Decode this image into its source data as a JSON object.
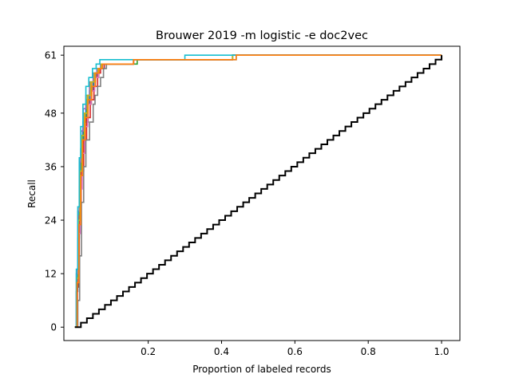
{
  "chart_data": {
    "type": "line",
    "title": "Brouwer 2019 -m logistic -e doc2vec",
    "xlabel": "Proportion of labeled records",
    "ylabel": "Recall",
    "xlim": [
      -0.03,
      1.05
    ],
    "ylim": [
      -3,
      63
    ],
    "xticks": [
      {
        "value": 0.2,
        "label": "0.2"
      },
      {
        "value": 0.4,
        "label": "0.4"
      },
      {
        "value": 0.6,
        "label": "0.6"
      },
      {
        "value": 0.8,
        "label": "0.8"
      },
      {
        "value": 1.0,
        "label": "1.0"
      }
    ],
    "yticks": [
      {
        "value": 0,
        "label": "0"
      },
      {
        "value": 12,
        "label": "12"
      },
      {
        "value": 24,
        "label": "24"
      },
      {
        "value": 36,
        "label": "36"
      },
      {
        "value": 48,
        "label": "48"
      },
      {
        "value": 61,
        "label": "61"
      }
    ],
    "grid": false,
    "legend": "none",
    "series": [
      {
        "color": "#1f77b4",
        "points": [
          [
            0,
            0
          ],
          [
            0.004,
            8
          ],
          [
            0.008,
            20
          ],
          [
            0.012,
            32
          ],
          [
            0.016,
            40
          ],
          [
            0.022,
            46
          ],
          [
            0.03,
            50
          ],
          [
            0.04,
            53
          ],
          [
            0.05,
            56
          ],
          [
            0.06,
            58
          ],
          [
            0.08,
            59
          ],
          [
            0.15,
            59
          ],
          [
            0.16,
            60
          ],
          [
            0.43,
            60
          ],
          [
            0.44,
            61
          ],
          [
            1.0,
            61
          ]
        ]
      },
      {
        "color": "#ff7f0e",
        "points": [
          [
            0,
            0
          ],
          [
            0.006,
            10
          ],
          [
            0.01,
            24
          ],
          [
            0.015,
            34
          ],
          [
            0.02,
            42
          ],
          [
            0.028,
            48
          ],
          [
            0.036,
            52
          ],
          [
            0.046,
            55
          ],
          [
            0.056,
            57
          ],
          [
            0.066,
            58
          ],
          [
            0.075,
            59
          ],
          [
            0.15,
            59
          ],
          [
            0.16,
            60
          ],
          [
            0.42,
            60
          ],
          [
            0.43,
            61
          ],
          [
            1.0,
            61
          ]
        ]
      },
      {
        "color": "#2ca02c",
        "points": [
          [
            0,
            0
          ],
          [
            0.005,
            9
          ],
          [
            0.009,
            22
          ],
          [
            0.013,
            33
          ],
          [
            0.018,
            41
          ],
          [
            0.025,
            47
          ],
          [
            0.033,
            51
          ],
          [
            0.043,
            54
          ],
          [
            0.053,
            56
          ],
          [
            0.063,
            58
          ],
          [
            0.072,
            59
          ],
          [
            0.16,
            59
          ],
          [
            0.17,
            60
          ],
          [
            0.42,
            60
          ],
          [
            0.43,
            61
          ],
          [
            1.0,
            61
          ]
        ]
      },
      {
        "color": "#d62728",
        "points": [
          [
            0,
            0
          ],
          [
            0.007,
            11
          ],
          [
            0.012,
            25
          ],
          [
            0.017,
            35
          ],
          [
            0.024,
            42
          ],
          [
            0.032,
            47
          ],
          [
            0.042,
            51
          ],
          [
            0.052,
            54
          ],
          [
            0.062,
            57
          ],
          [
            0.07,
            58
          ],
          [
            0.08,
            59
          ],
          [
            0.15,
            59
          ],
          [
            0.16,
            60
          ],
          [
            0.42,
            60
          ],
          [
            0.43,
            61
          ],
          [
            1.0,
            61
          ]
        ]
      },
      {
        "color": "#9467bd",
        "points": [
          [
            0,
            0
          ],
          [
            0.004,
            12
          ],
          [
            0.008,
            26
          ],
          [
            0.012,
            37
          ],
          [
            0.017,
            44
          ],
          [
            0.023,
            49
          ],
          [
            0.03,
            52
          ],
          [
            0.04,
            55
          ],
          [
            0.05,
            57
          ],
          [
            0.06,
            58
          ],
          [
            0.07,
            59
          ],
          [
            0.15,
            59
          ],
          [
            0.16,
            60
          ],
          [
            0.42,
            60
          ],
          [
            0.43,
            61
          ],
          [
            1.0,
            61
          ]
        ]
      },
      {
        "color": "#8c564b",
        "points": [
          [
            0,
            0
          ],
          [
            0.006,
            9
          ],
          [
            0.011,
            23
          ],
          [
            0.016,
            34
          ],
          [
            0.021,
            41
          ],
          [
            0.028,
            46
          ],
          [
            0.036,
            50
          ],
          [
            0.045,
            54
          ],
          [
            0.055,
            56
          ],
          [
            0.065,
            58
          ],
          [
            0.074,
            59
          ],
          [
            0.15,
            59
          ],
          [
            0.16,
            60
          ],
          [
            0.42,
            60
          ],
          [
            0.43,
            61
          ],
          [
            1.0,
            61
          ]
        ]
      },
      {
        "color": "#e377c2",
        "points": [
          [
            0,
            0
          ],
          [
            0.005,
            10
          ],
          [
            0.01,
            21
          ],
          [
            0.015,
            31
          ],
          [
            0.02,
            39
          ],
          [
            0.027,
            45
          ],
          [
            0.035,
            50
          ],
          [
            0.044,
            53
          ],
          [
            0.054,
            56
          ],
          [
            0.064,
            58
          ],
          [
            0.073,
            59
          ],
          [
            0.15,
            59
          ],
          [
            0.16,
            60
          ],
          [
            0.42,
            60
          ],
          [
            0.43,
            61
          ],
          [
            1.0,
            61
          ]
        ]
      },
      {
        "color": "#7f7f7f",
        "points": [
          [
            0,
            0
          ],
          [
            0.008,
            6
          ],
          [
            0.013,
            16
          ],
          [
            0.018,
            28
          ],
          [
            0.024,
            36
          ],
          [
            0.03,
            42
          ],
          [
            0.04,
            46
          ],
          [
            0.05,
            50
          ],
          [
            0.055,
            52
          ],
          [
            0.062,
            54
          ],
          [
            0.07,
            56
          ],
          [
            0.078,
            58
          ],
          [
            0.086,
            59
          ],
          [
            0.15,
            59
          ],
          [
            0.16,
            60
          ],
          [
            0.42,
            60
          ],
          [
            0.43,
            61
          ],
          [
            1.0,
            61
          ]
        ]
      },
      {
        "color": "#bcbd22",
        "points": [
          [
            0,
            0
          ],
          [
            0.005,
            11
          ],
          [
            0.01,
            24
          ],
          [
            0.014,
            35
          ],
          [
            0.019,
            43
          ],
          [
            0.026,
            48
          ],
          [
            0.034,
            52
          ],
          [
            0.043,
            55
          ],
          [
            0.053,
            57
          ],
          [
            0.063,
            58
          ],
          [
            0.072,
            59
          ],
          [
            0.15,
            59
          ],
          [
            0.16,
            60
          ],
          [
            0.42,
            60
          ],
          [
            0.43,
            61
          ],
          [
            1.0,
            61
          ]
        ]
      },
      {
        "color": "#17becf",
        "points": [
          [
            0,
            0
          ],
          [
            0.004,
            13
          ],
          [
            0.008,
            27
          ],
          [
            0.012,
            38
          ],
          [
            0.016,
            45
          ],
          [
            0.022,
            50
          ],
          [
            0.03,
            54
          ],
          [
            0.038,
            56
          ],
          [
            0.048,
            58
          ],
          [
            0.058,
            59
          ],
          [
            0.068,
            60
          ],
          [
            0.29,
            60
          ],
          [
            0.3,
            61
          ],
          [
            1.0,
            61
          ]
        ]
      },
      {
        "color": "#ff7f0e",
        "points": [
          [
            0,
            0
          ],
          [
            0.006,
            10
          ],
          [
            0.011,
            23
          ],
          [
            0.016,
            34
          ],
          [
            0.021,
            42
          ],
          [
            0.028,
            47
          ],
          [
            0.036,
            51
          ],
          [
            0.046,
            54
          ],
          [
            0.056,
            57
          ],
          [
            0.066,
            58
          ],
          [
            0.075,
            59
          ],
          [
            0.15,
            59
          ],
          [
            0.16,
            60
          ],
          [
            0.43,
            60
          ],
          [
            0.44,
            61
          ],
          [
            1.0,
            61
          ]
        ]
      },
      {
        "color": "#000000",
        "random_baseline": true,
        "x_max": 1.0,
        "y_max": 61
      }
    ]
  }
}
